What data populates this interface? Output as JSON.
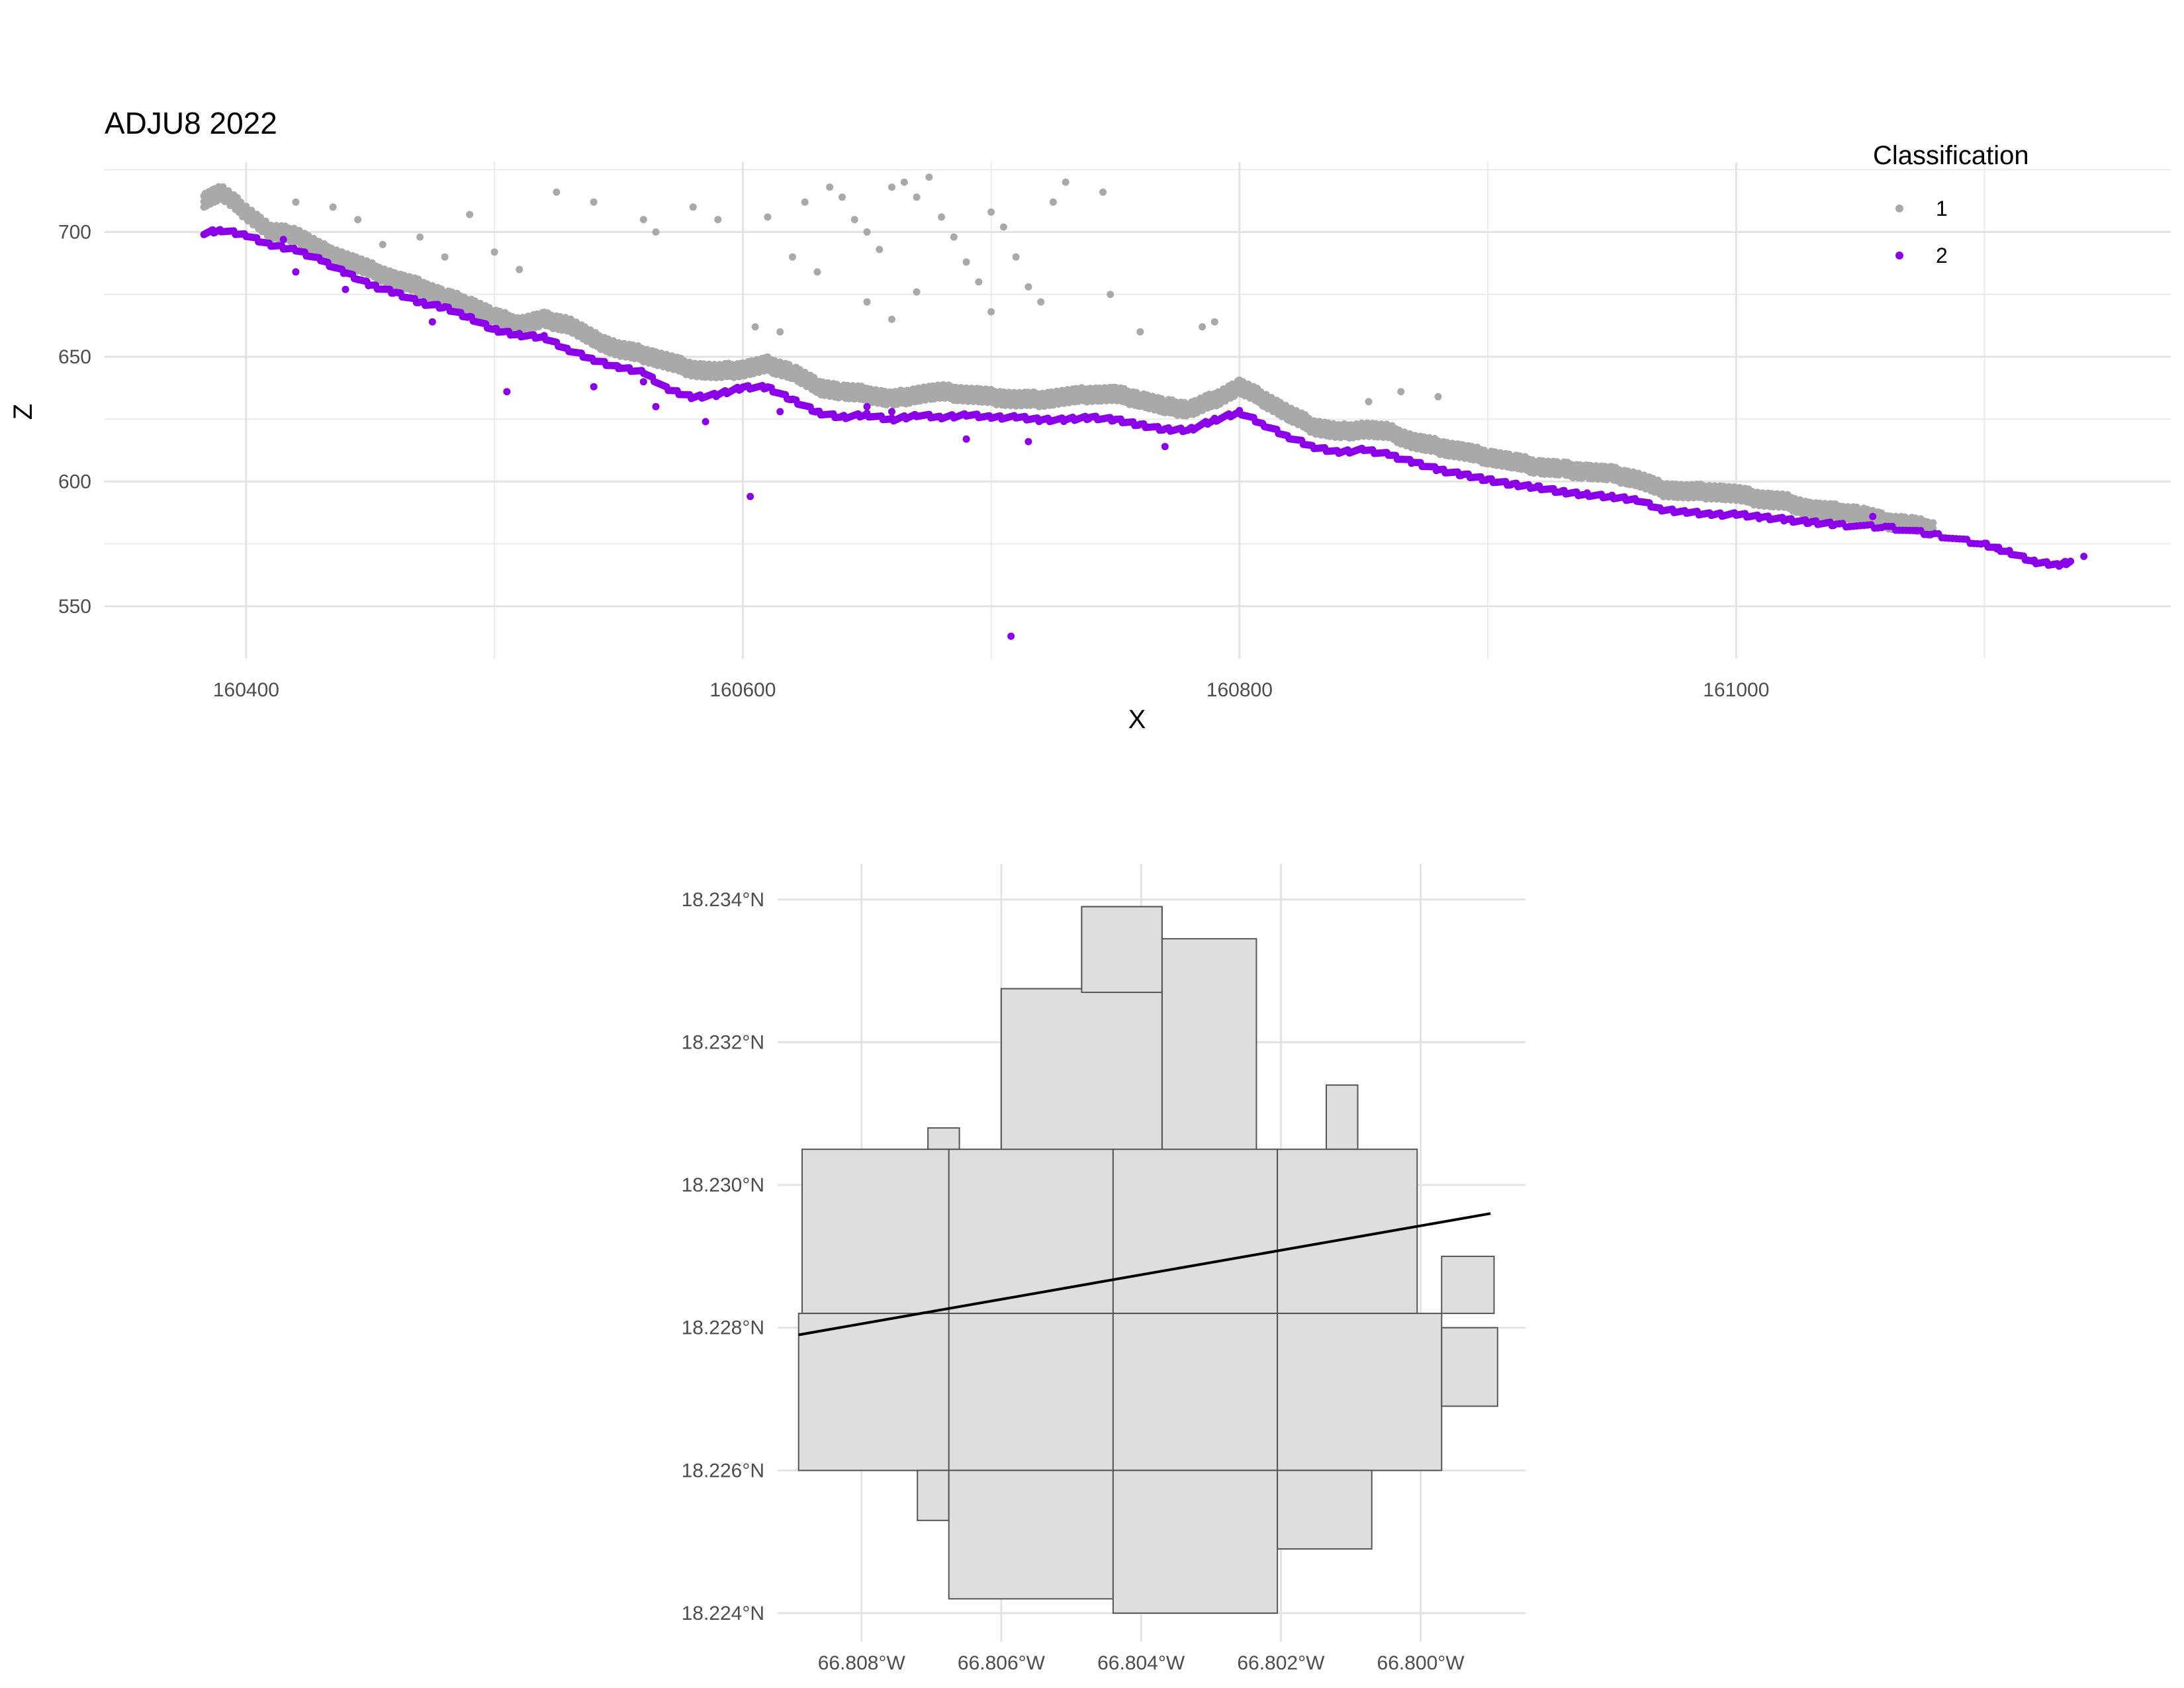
{
  "chart_data": [
    {
      "type": "scatter",
      "title": "ADJU8 2022",
      "xlabel": "X",
      "ylabel": "Z",
      "xlim": [
        160343,
        161175
      ],
      "ylim": [
        529,
        728
      ],
      "xticks": [
        160400,
        160600,
        160800,
        161000
      ],
      "xtick_labels": [
        "160400",
        "160600",
        "160800",
        "161000"
      ],
      "yticks": [
        550,
        600,
        650,
        700
      ],
      "ytick_labels": [
        "550",
        "600",
        "650",
        "700"
      ],
      "grid": true,
      "legend": {
        "title": "Classification",
        "placement": "top-right",
        "entries": [
          {
            "label": "1",
            "color": "#a9a9a9"
          },
          {
            "label": "2",
            "color": "#8b00e8"
          }
        ]
      },
      "series": [
        {
          "name": "1",
          "color": "#a9a9a9",
          "profile": [
            [
              160383,
              710
            ],
            [
              160390,
              713
            ],
            [
              160400,
              705
            ],
            [
              160410,
              697
            ],
            [
              160420,
              696
            ],
            [
              160430,
              690
            ],
            [
              160440,
              686
            ],
            [
              160450,
              682
            ],
            [
              160460,
              678
            ],
            [
              160470,
              675
            ],
            [
              160480,
              671
            ],
            [
              160490,
              668
            ],
            [
              160500,
              663
            ],
            [
              160510,
              660
            ],
            [
              160520,
              662
            ],
            [
              160530,
              660
            ],
            [
              160540,
              654
            ],
            [
              160550,
              650
            ],
            [
              160560,
              648
            ],
            [
              160570,
              645
            ],
            [
              160580,
              642
            ],
            [
              160590,
              641
            ],
            [
              160600,
              642
            ],
            [
              160610,
              644
            ],
            [
              160620,
              641
            ],
            [
              160630,
              635
            ],
            [
              160640,
              633
            ],
            [
              160650,
              632
            ],
            [
              160660,
              630
            ],
            [
              160670,
              632
            ],
            [
              160680,
              633
            ],
            [
              160690,
              632
            ],
            [
              160700,
              631
            ],
            [
              160710,
              630
            ],
            [
              160720,
              630
            ],
            [
              160730,
              631
            ],
            [
              160740,
              632
            ],
            [
              160750,
              632
            ],
            [
              160760,
              630
            ],
            [
              160770,
              627
            ],
            [
              160780,
              626
            ],
            [
              160790,
              630
            ],
            [
              160800,
              635
            ],
            [
              160810,
              630
            ],
            [
              160820,
              624
            ],
            [
              160830,
              619
            ],
            [
              160840,
              617
            ],
            [
              160850,
              618
            ],
            [
              160860,
              617
            ],
            [
              160870,
              613
            ],
            [
              160880,
              611
            ],
            [
              160890,
              609
            ],
            [
              160900,
              607
            ],
            [
              160910,
              605
            ],
            [
              160920,
              603
            ],
            [
              160930,
              602
            ],
            [
              160940,
              601
            ],
            [
              160950,
              600
            ],
            [
              160960,
              598
            ],
            [
              160970,
              594
            ],
            [
              160980,
              593
            ],
            [
              160990,
              593
            ],
            [
              161000,
              592
            ],
            [
              161010,
              590
            ],
            [
              161020,
              589
            ],
            [
              161030,
              586
            ],
            [
              161040,
              585
            ],
            [
              161050,
              584
            ],
            [
              161060,
              581
            ],
            [
              161070,
              580
            ],
            [
              161080,
              578
            ]
          ],
          "outliers": [
            [
              160420,
              712
            ],
            [
              160435,
              710
            ],
            [
              160445,
              705
            ],
            [
              160455,
              695
            ],
            [
              160470,
              698
            ],
            [
              160480,
              690
            ],
            [
              160490,
              707
            ],
            [
              160500,
              692
            ],
            [
              160510,
              685
            ],
            [
              160525,
              716
            ],
            [
              160540,
              712
            ],
            [
              160560,
              705
            ],
            [
              160565,
              700
            ],
            [
              160580,
              710
            ],
            [
              160590,
              705
            ],
            [
              160610,
              706
            ],
            [
              160625,
              712
            ],
            [
              160635,
              718
            ],
            [
              160640,
              714
            ],
            [
              160645,
              705
            ],
            [
              160650,
              700
            ],
            [
              160655,
              693
            ],
            [
              160660,
              718
            ],
            [
              160665,
              720
            ],
            [
              160670,
              714
            ],
            [
              160675,
              722
            ],
            [
              160680,
              706
            ],
            [
              160685,
              698
            ],
            [
              160690,
              688
            ],
            [
              160695,
              680
            ],
            [
              160700,
              708
            ],
            [
              160705,
              702
            ],
            [
              160710,
              690
            ],
            [
              160715,
              678
            ],
            [
              160720,
              672
            ],
            [
              160725,
              712
            ],
            [
              160730,
              720
            ],
            [
              160745,
              716
            ],
            [
              160748,
              675
            ],
            [
              160760,
              660
            ],
            [
              160785,
              662
            ],
            [
              160790,
              664
            ],
            [
              160650,
              672
            ],
            [
              160660,
              665
            ],
            [
              160615,
              660
            ],
            [
              160605,
              662
            ],
            [
              160620,
              690
            ],
            [
              160630,
              684
            ],
            [
              160670,
              676
            ],
            [
              160700,
              668
            ],
            [
              160865,
              636
            ],
            [
              160880,
              634
            ],
            [
              160852,
              632
            ]
          ]
        },
        {
          "name": "2",
          "color": "#8b00e8",
          "profile": [
            [
              160383,
              699
            ],
            [
              160390,
              700
            ],
            [
              160400,
              698
            ],
            [
              160410,
              694
            ],
            [
              160420,
              692
            ],
            [
              160430,
              688
            ],
            [
              160440,
              683
            ],
            [
              160450,
              678
            ],
            [
              160460,
              675
            ],
            [
              160470,
              671
            ],
            [
              160480,
              669
            ],
            [
              160490,
              665
            ],
            [
              160500,
              660
            ],
            [
              160510,
              658
            ],
            [
              160520,
              657
            ],
            [
              160530,
              652
            ],
            [
              160540,
              648
            ],
            [
              160550,
              645
            ],
            [
              160560,
              643
            ],
            [
              160570,
              636
            ],
            [
              160580,
              633
            ],
            [
              160590,
              634
            ],
            [
              160600,
              637
            ],
            [
              160610,
              637
            ],
            [
              160620,
              632
            ],
            [
              160630,
              627
            ],
            [
              160640,
              625
            ],
            [
              160650,
              626
            ],
            [
              160660,
              624
            ],
            [
              160670,
              626
            ],
            [
              160680,
              625
            ],
            [
              160690,
              626
            ],
            [
              160700,
              625
            ],
            [
              160710,
              625
            ],
            [
              160720,
              624
            ],
            [
              160730,
              624
            ],
            [
              160740,
              625
            ],
            [
              160750,
              624
            ],
            [
              160760,
              622
            ],
            [
              160770,
              620
            ],
            [
              160780,
              620
            ],
            [
              160790,
              624
            ],
            [
              160800,
              627
            ],
            [
              160810,
              622
            ],
            [
              160820,
              617
            ],
            [
              160830,
              613
            ],
            [
              160840,
              611
            ],
            [
              160850,
              612
            ],
            [
              160860,
              610
            ],
            [
              160870,
              607
            ],
            [
              160880,
              604
            ],
            [
              160890,
              602
            ],
            [
              160900,
              600
            ],
            [
              160910,
              598
            ],
            [
              160920,
              597
            ],
            [
              160930,
              595
            ],
            [
              160940,
              594
            ],
            [
              160950,
              593
            ],
            [
              160960,
              592
            ],
            [
              160970,
              588
            ],
            [
              160980,
              587
            ],
            [
              160990,
              586
            ],
            [
              161000,
              586
            ],
            [
              161010,
              585
            ],
            [
              161020,
              584
            ],
            [
              161030,
              583
            ],
            [
              161040,
              582
            ],
            [
              161060,
              581
            ],
            [
              161080,
              578
            ],
            [
              161100,
              574
            ],
            [
              161110,
              571
            ],
            [
              161120,
              567
            ],
            [
              161130,
              566
            ],
            [
              161135,
              567
            ]
          ],
          "outliers": [
            [
              160505,
              636
            ],
            [
              160540,
              638
            ],
            [
              160565,
              630
            ],
            [
              160585,
              624
            ],
            [
              160603,
              594
            ],
            [
              160615,
              628
            ],
            [
              160690,
              617
            ],
            [
              160708,
              538
            ],
            [
              160715,
              616
            ],
            [
              160770,
              614
            ],
            [
              160475,
              664
            ],
            [
              160415,
              697
            ],
            [
              160420,
              684
            ],
            [
              160440,
              677
            ],
            [
              160550,
              646
            ],
            [
              160560,
              640
            ],
            [
              160650,
              630
            ],
            [
              160660,
              628
            ],
            [
              161140,
              570
            ],
            [
              161055,
              586
            ],
            [
              161105,
              573
            ],
            [
              161120,
              568
            ]
          ]
        }
      ]
    },
    {
      "type": "map",
      "xticks": [
        -66.808,
        -66.806,
        -66.804,
        -66.802,
        -66.8
      ],
      "xtick_labels": [
        "66.808°W",
        "66.806°W",
        "66.804°W",
        "66.802°W",
        "66.800°W"
      ],
      "yticks": [
        18.224,
        18.226,
        18.228,
        18.23,
        18.232,
        18.234
      ],
      "ytick_labels": [
        "18.224°N",
        "18.226°N",
        "18.228°N",
        "18.230°N",
        "18.232°N",
        "18.234°N"
      ],
      "xlim": [
        -66.8092,
        -66.7985
      ],
      "ylim": [
        18.2236,
        18.2345
      ],
      "grid": true,
      "fill_color": "#dedede",
      "line_color": "#000000",
      "tiles": [
        [
          -66.80485,
          -66.8037,
          18.2327,
          18.2339
        ],
        [
          -66.8037,
          -66.80235,
          18.23045,
          18.23345
        ],
        [
          -66.806,
          -66.8037,
          18.23045,
          18.23275
        ],
        [
          -66.806,
          -66.8037,
          18.23045,
          18.23275
        ],
        [
          -66.80485,
          -66.8037,
          18.2327,
          18.2339
        ],
        [
          -66.80135,
          -66.8009,
          18.2305,
          18.2314
        ],
        [
          -66.80705,
          -66.8066,
          18.2305,
          18.2308
        ],
        [
          -66.80885,
          -66.80675,
          18.2282,
          18.2305
        ],
        [
          -66.80675,
          -66.8044,
          18.2282,
          18.2305
        ],
        [
          -66.8044,
          -66.80205,
          18.2282,
          18.2305
        ],
        [
          -66.80205,
          -66.80005,
          18.2282,
          18.2305
        ],
        [
          -66.7997,
          -66.79895,
          18.2282,
          18.229
        ],
        [
          -66.8089,
          -66.80675,
          18.226,
          18.2282
        ],
        [
          -66.80675,
          -66.8044,
          18.226,
          18.2282
        ],
        [
          -66.8044,
          -66.80205,
          18.226,
          18.2282
        ],
        [
          -66.80205,
          -66.7997,
          18.226,
          18.2282
        ],
        [
          -66.7997,
          -66.7989,
          18.2269,
          18.228
        ],
        [
          -66.8072,
          -66.80675,
          18.2253,
          18.226
        ],
        [
          -66.80675,
          -66.8044,
          18.2242,
          18.226
        ],
        [
          -66.8044,
          -66.80205,
          18.224,
          18.226
        ],
        [
          -66.80205,
          -66.8007,
          18.2249,
          18.226
        ]
      ],
      "line": [
        [
          -66.8089,
          18.2279
        ],
        [
          -66.799,
          18.2296
        ]
      ]
    }
  ]
}
